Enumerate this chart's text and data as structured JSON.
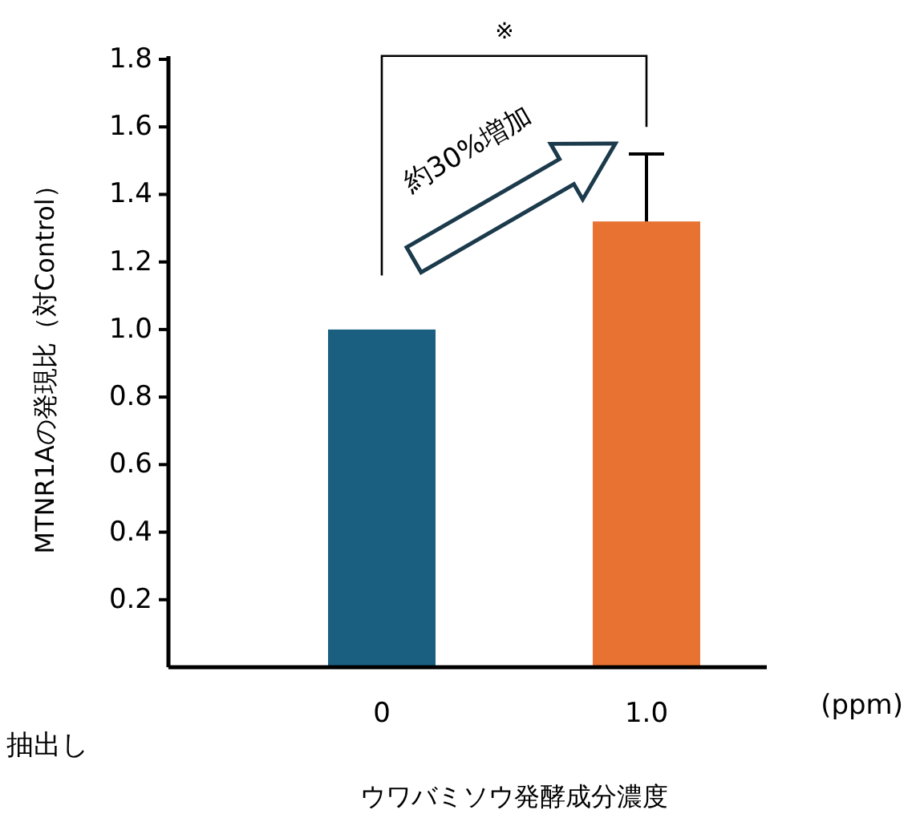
{
  "chart_data": {
    "type": "bar",
    "xlabel": "ウワバミソウ発酵成分濃度",
    "ylabel": "MTNR1Aの発現比（対Control）",
    "categories": [
      "0",
      "1.0"
    ],
    "values": [
      1.0,
      1.32
    ],
    "colors": [
      "#1a5e80",
      "#e87232"
    ],
    "errors": [
      null,
      [
        1.32,
        1.52
      ]
    ],
    "ylim": [
      0,
      1.8
    ],
    "yticks": [
      0.2,
      0.4,
      0.6,
      0.8,
      {
        "value": 1.0,
        "label": "1.0"
      },
      1.2,
      1.4,
      1.6,
      1.8
    ],
    "annotations": [
      "※",
      "約30%増加",
      "(ppm)",
      "抽出し"
    ]
  }
}
